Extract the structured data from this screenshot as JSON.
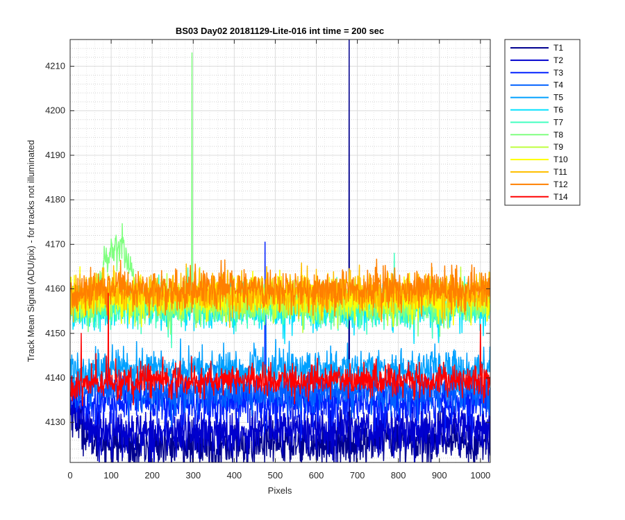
{
  "chart_data": {
    "type": "line",
    "title": "BS03 Day02 20181129-Lite-016 int time = 200 sec",
    "xlabel": "Pixels",
    "ylabel": "Track Mean Signal (ADU/pix) - for tracks not illuminated",
    "xlim": [
      0,
      1024
    ],
    "ylim": [
      4121,
      4216
    ],
    "xticks": [
      "0",
      "100",
      "200",
      "300",
      "400",
      "500",
      "600",
      "700",
      "800",
      "900",
      "1000"
    ],
    "yticks": [
      "4130",
      "4140",
      "4150",
      "4160",
      "4170",
      "4180",
      "4190",
      "4200",
      "4210"
    ],
    "grid": "major and minor",
    "legend_position": "outside-right",
    "series": [
      {
        "name": "T1",
        "color": "#00008f",
        "level": 4125.5,
        "noise": 2.6,
        "start": 4133,
        "spikes": [
          [
            680,
            4216
          ]
        ]
      },
      {
        "name": "T2",
        "color": "#0000ce",
        "level": 4128.5,
        "noise": 2.6,
        "start": 4134,
        "spikes": []
      },
      {
        "name": "T3",
        "color": "#0020ff",
        "level": 4134.5,
        "noise": 2.6,
        "start": 4136,
        "spikes": [
          [
            475,
            4170.5
          ]
        ]
      },
      {
        "name": "T4",
        "color": "#0060ff",
        "level": 4137,
        "noise": 2.4,
        "start": 4138,
        "spikes": [
          [
            477,
            4154
          ]
        ]
      },
      {
        "name": "T5",
        "color": "#00a0ff",
        "level": 4142,
        "noise": 2.1,
        "start": 4142,
        "spikes": []
      },
      {
        "name": "T6",
        "color": "#00e0ff",
        "level": 4155.5,
        "noise": 2.2,
        "start": 4155,
        "spikes": []
      },
      {
        "name": "T7",
        "color": "#40ffbf",
        "level": 4156,
        "noise": 2.2,
        "start": 4156,
        "spikes": [
          [
            790,
            4168
          ]
        ]
      },
      {
        "name": "T8",
        "color": "#80ff80",
        "level": 4156.5,
        "noise": 2.2,
        "start": 4156,
        "hump": [
          60,
          170,
          4170
        ],
        "spikes": [
          [
            297,
            4213
          ]
        ]
      },
      {
        "name": "T9",
        "color": "#bfff40",
        "level": 4157.5,
        "noise": 2.1,
        "start": 4157,
        "spikes": []
      },
      {
        "name": "T10",
        "color": "#ffff00",
        "level": 4158,
        "noise": 2.1,
        "start": 4158,
        "spikes": []
      },
      {
        "name": "T11",
        "color": "#ffbf00",
        "level": 4159,
        "noise": 2.2,
        "start": 4158,
        "spikes": []
      },
      {
        "name": "T12",
        "color": "#ff8000",
        "level": 4160,
        "noise": 2.3,
        "start": 4158,
        "spikes": []
      },
      {
        "name": "T14",
        "color": "#ff0000",
        "level": 4139.5,
        "noise": 1.8,
        "start": 4138,
        "spikes": [
          [
            27,
            4150
          ],
          [
            93,
            4159
          ],
          [
            1000,
            4152
          ]
        ]
      }
    ]
  }
}
